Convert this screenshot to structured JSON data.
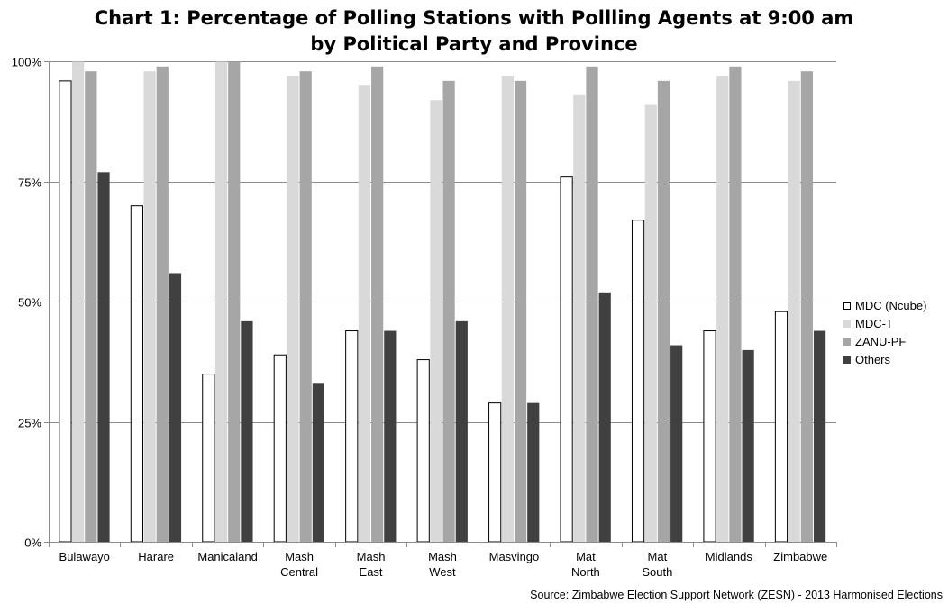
{
  "chart_data": {
    "type": "bar",
    "title": {
      "line1": "Chart 1: Percentage of Polling Stations with Pollling Agents  at 9:00 am",
      "line2": "by Political Party and Province"
    },
    "xlabel": "",
    "ylabel": "",
    "ylim": [
      0,
      100
    ],
    "y_ticks": [
      0,
      25,
      50,
      75,
      100
    ],
    "y_tick_labels": [
      "0%",
      "25%",
      "50%",
      "75%",
      "100%"
    ],
    "grid": true,
    "legend_position": "right",
    "categories": [
      [
        "Bulawayo"
      ],
      [
        "Harare"
      ],
      [
        "Manicaland"
      ],
      [
        "Mash",
        "Central"
      ],
      [
        "Mash",
        "East"
      ],
      [
        "Mash",
        "West"
      ],
      [
        "Masvingo"
      ],
      [
        "Mat",
        "North"
      ],
      [
        "Mat",
        "South"
      ],
      [
        "Midlands"
      ],
      [
        "Zimbabwe"
      ]
    ],
    "series": [
      {
        "name": "MDC (Ncube)",
        "color": "#ffffff",
        "values": [
          96,
          70,
          35,
          39,
          44,
          38,
          29,
          76,
          67,
          44,
          48
        ]
      },
      {
        "name": "MDC-T",
        "color": "#d9d9d9",
        "values": [
          100,
          98,
          100,
          97,
          95,
          92,
          97,
          93,
          91,
          97,
          96
        ]
      },
      {
        "name": "ZANU-PF",
        "color": "#a6a6a6",
        "values": [
          98,
          99,
          100,
          98,
          99,
          96,
          96,
          99,
          96,
          99,
          98
        ]
      },
      {
        "name": "Others",
        "color": "#404040",
        "values": [
          77,
          56,
          46,
          33,
          44,
          46,
          29,
          52,
          41,
          40,
          44
        ]
      }
    ],
    "source": "Source: Zimbabwe Election Support Network (ZESN) - 2013 Harmonised Elections"
  }
}
